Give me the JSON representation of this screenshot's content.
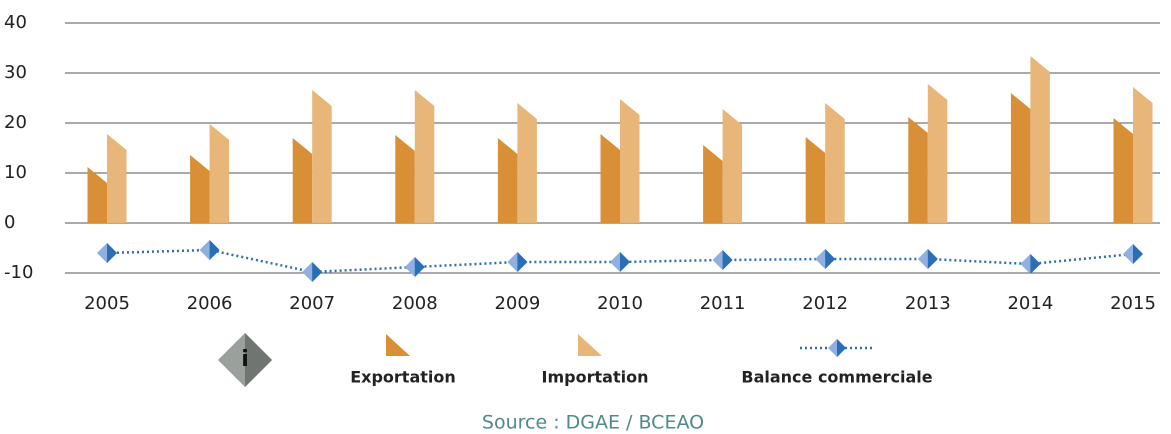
{
  "chart_data": {
    "type": "bar",
    "categories": [
      "2005",
      "2006",
      "2007",
      "2008",
      "2009",
      "2010",
      "2011",
      "2012",
      "2013",
      "2014",
      "2015"
    ],
    "series": [
      {
        "name": "Exportation",
        "color": "#d88f35",
        "values": [
          11.2,
          13.6,
          17,
          17.6,
          17,
          17.8,
          15.6,
          17.2,
          21.2,
          26,
          21
        ]
      },
      {
        "name": "Importation",
        "color": "#e8b679",
        "values": [
          17.8,
          19.8,
          26.6,
          26.6,
          24,
          24.8,
          22.8,
          24,
          27.8,
          33.4,
          27.2
        ]
      },
      {
        "name": "Balance commerciale",
        "type": "line",
        "color": "#2a6fb5",
        "values": [
          -6,
          -5.4,
          -9.8,
          -8.8,
          -7.8,
          -7.8,
          -7.4,
          -7.2,
          -7.2,
          -8.2,
          -6.2
        ]
      }
    ],
    "ylim": [
      -10,
      40
    ],
    "yticks": [
      -10,
      0,
      10,
      20,
      30,
      40
    ],
    "grid": true,
    "source": "Source : DGAE / BCEAO"
  }
}
